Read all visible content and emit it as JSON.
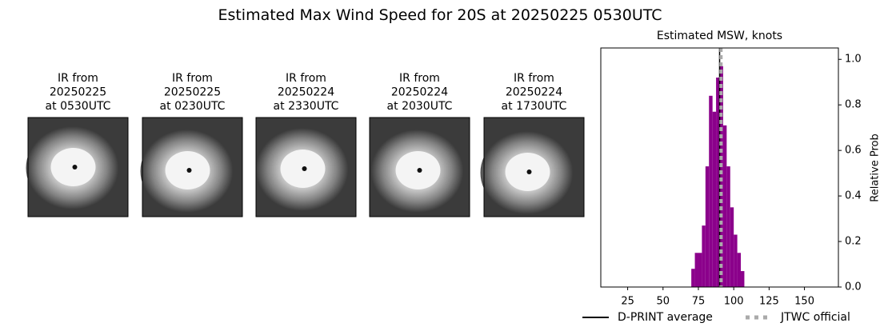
{
  "title": "Estimated Max Wind Speed for 20S at 20250225 0530UTC",
  "panels": [
    {
      "title_lines": [
        "IR from",
        "20250225",
        "at 0530UTC"
      ]
    },
    {
      "title_lines": [
        "IR from",
        "20250225",
        "at 0230UTC"
      ]
    },
    {
      "title_lines": [
        "IR from",
        "20250224",
        "at 2330UTC"
      ]
    },
    {
      "title_lines": [
        "IR from",
        "20250224",
        "at 2030UTC"
      ]
    },
    {
      "title_lines": [
        "IR from",
        "20250224",
        "at 1730UTC"
      ]
    }
  ],
  "chart_data": {
    "type": "histogram",
    "title": "Estimated MSW, knots",
    "y_label": "Relative Prob",
    "color": "#8b008b",
    "bins": [
      70,
      72.5,
      75,
      77.5,
      80,
      82.5,
      85,
      87.5,
      90,
      92.5,
      95,
      97.5,
      100,
      102.5,
      105,
      107.5
    ],
    "counts": [
      0.08,
      0.15,
      0.15,
      0.27,
      0.53,
      0.84,
      0.77,
      0.92,
      0.97,
      0.71,
      0.53,
      0.35,
      0.23,
      0.15,
      0.07
    ],
    "xlim": [
      6,
      174
    ],
    "ylim": [
      0,
      1.05
    ],
    "xticks": [
      25,
      50,
      75,
      100,
      125,
      150
    ],
    "yticks": [
      {
        "value": 0,
        "label": "0.0"
      },
      {
        "value": 0.2,
        "label": "0.2"
      },
      {
        "value": 0.4,
        "label": "0.4"
      },
      {
        "value": 0.6,
        "label": "0.6"
      },
      {
        "value": 0.8,
        "label": "0.8"
      },
      {
        "value": 1,
        "label": "1.0"
      }
    ],
    "lines": [
      {
        "name": "D-PRINT average",
        "value": 90,
        "color": "#000000",
        "style": "solid"
      },
      {
        "name": "JTWC official",
        "value": 91,
        "color": "#aaaaaa",
        "style": "dashed"
      }
    ]
  }
}
